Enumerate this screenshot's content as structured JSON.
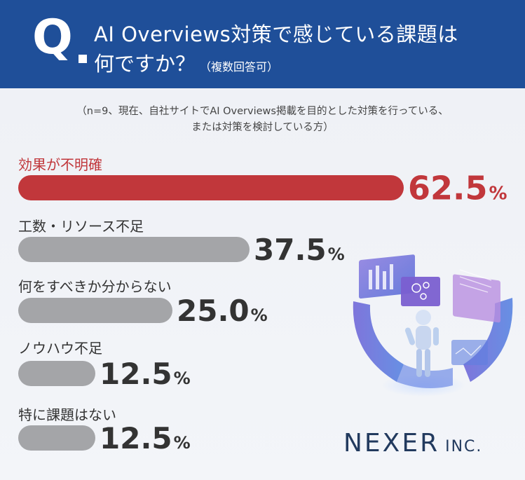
{
  "header": {
    "q_mark": "Q",
    "question_line1": "AI Overviews対策で感じている課題は",
    "question_line2": "何ですか？",
    "question_note": "（複数回答可）"
  },
  "note_line1": "（n=9、現在、自社サイトでAI Overviews掲載を目的とした対策を行っている、",
  "note_line2": "または対策を検討している方）",
  "colors": {
    "header_bg": "#1f4f99",
    "highlight": "#c1373b",
    "bar_gray": "#a4a5a8",
    "text_dark": "#333333"
  },
  "chart_data": {
    "type": "bar",
    "orientation": "horizontal",
    "categories": [
      "効果が不明確",
      "工数・リソース不足",
      "何をすべきか分からない",
      "ノウハウ不足",
      "特に課題はない"
    ],
    "values": [
      62.5,
      37.5,
      25.0,
      12.5,
      12.5
    ],
    "value_labels": [
      "62.5",
      "37.5",
      "25.0",
      "12.5",
      "12.5"
    ],
    "unit": "%",
    "highlight_index": 0,
    "xlim": [
      0,
      100
    ]
  },
  "logo": {
    "main": "NEXER",
    "sub": "INC."
  }
}
